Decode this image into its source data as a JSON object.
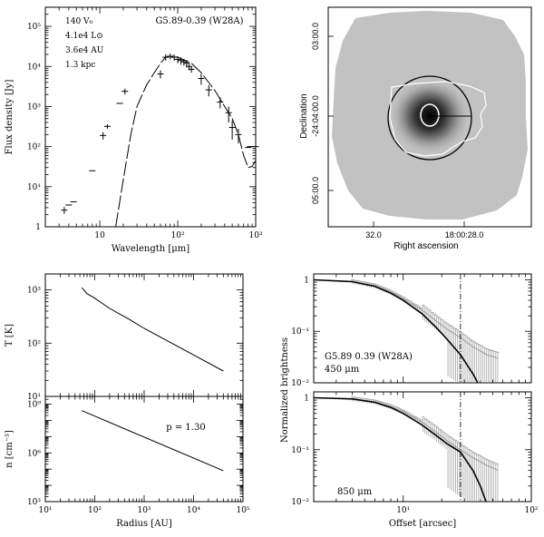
{
  "chart_data": [
    {
      "type": "scatter",
      "name": "sed",
      "title": "G5.89-0.39 (W28A)",
      "xlabel": "Wavelength [μm]",
      "ylabel": "Flux density [Jy]",
      "xscale": "log",
      "yscale": "log",
      "xlim": [
        2,
        1000
      ],
      "ylim": [
        1,
        300000
      ],
      "xticks": [
        {
          "v": 10,
          "t": "10"
        },
        {
          "v": 100,
          "t": "10²"
        },
        {
          "v": 1000,
          "t": "10³"
        }
      ],
      "yticks": [
        {
          "v": 1,
          "t": "1"
        },
        {
          "v": 10,
          "t": "10¹"
        },
        {
          "v": 100,
          "t": "10²"
        },
        {
          "v": 1000,
          "t": "10³"
        },
        {
          "v": 10000,
          "t": "10⁴"
        },
        {
          "v": 100000,
          "t": "10⁵"
        }
      ],
      "params": [
        "140 V₀",
        "4.1e4 L⊙",
        "3.6e4 AU",
        "1.3 kpc"
      ],
      "points": [
        [
          3.5,
          2.6,
          0.5
        ],
        [
          4.0,
          3.5,
          0
        ],
        [
          4.6,
          4.2,
          0
        ],
        [
          8.0,
          25,
          0
        ],
        [
          11,
          190,
          40
        ],
        [
          12.5,
          320,
          40
        ],
        [
          18,
          1200,
          0
        ],
        [
          21,
          2400,
          400
        ],
        [
          60,
          6500,
          1500
        ],
        [
          70,
          17000,
          3000
        ],
        [
          80,
          18000,
          3000
        ],
        [
          90,
          17000,
          3000
        ],
        [
          100,
          15000,
          3000
        ],
        [
          110,
          14000,
          3000
        ],
        [
          120,
          13000,
          2500
        ],
        [
          130,
          12000,
          2500
        ],
        [
          140,
          10000,
          2000
        ],
        [
          150,
          8500,
          1500
        ],
        [
          200,
          5000,
          1500
        ],
        [
          250,
          2600,
          800
        ],
        [
          350,
          1300,
          400
        ],
        [
          450,
          700,
          300
        ],
        [
          500,
          300,
          150
        ],
        [
          600,
          200,
          80
        ],
        [
          800,
          95,
          0
        ],
        [
          850,
          100,
          0
        ],
        [
          1000,
          100,
          0
        ]
      ],
      "model": [
        [
          16,
          1
        ],
        [
          20,
          15
        ],
        [
          25,
          200
        ],
        [
          30,
          1000
        ],
        [
          40,
          3500
        ],
        [
          50,
          7000
        ],
        [
          60,
          12000
        ],
        [
          70,
          17000
        ],
        [
          80,
          18000
        ],
        [
          100,
          17000
        ],
        [
          150,
          12000
        ],
        [
          200,
          7000
        ],
        [
          300,
          2500
        ],
        [
          400,
          1000
        ],
        [
          500,
          500
        ],
        [
          600,
          200
        ],
        [
          700,
          60
        ],
        [
          800,
          30
        ],
        [
          900,
          32
        ],
        [
          1000,
          45
        ]
      ]
    },
    {
      "type": "heatmap",
      "name": "map",
      "xlabel": "Right ascension",
      "ylabel": "Declination",
      "xticks": [
        "32.0",
        "18:00:28.0"
      ],
      "yticks": [
        "03:00.0",
        "-24:04:00.0",
        "05:00.0"
      ]
    },
    {
      "type": "line",
      "name": "temperature",
      "ylabel": "T [K]",
      "xscale": "log",
      "yscale": "log",
      "xlim": [
        10,
        100000
      ],
      "ylim": [
        10,
        2000
      ],
      "yticks": [
        {
          "v": 10,
          "t": "10¹"
        },
        {
          "v": 100,
          "t": "10²"
        },
        {
          "v": 1000,
          "t": "10³"
        }
      ],
      "x": [
        55,
        70,
        100,
        200,
        500,
        1000,
        3000,
        10000,
        40000
      ],
      "y": [
        1100,
        850,
        700,
        450,
        280,
        190,
        110,
        60,
        30
      ]
    },
    {
      "type": "line",
      "name": "density",
      "xlabel": "Radius [AU]",
      "ylabel": "n [cm⁻³]",
      "annotation": "p = 1.30",
      "xscale": "log",
      "yscale": "log",
      "xlim": [
        10,
        100000
      ],
      "ylim": [
        1000,
        3000000000
      ],
      "xticks": [
        {
          "v": 10,
          "t": "10¹"
        },
        {
          "v": 100,
          "t": "10²"
        },
        {
          "v": 1000,
          "t": "10³"
        },
        {
          "v": 10000,
          "t": "10⁴"
        },
        {
          "v": 100000,
          "t": "10⁵"
        }
      ],
      "yticks": [
        {
          "v": 1000,
          "t": "10³"
        },
        {
          "v": 1000000,
          "t": "10⁶"
        },
        {
          "v": 1000000000,
          "t": "10⁹"
        }
      ],
      "x": [
        55,
        40000
      ],
      "y": [
        400000000,
        80000
      ]
    },
    {
      "type": "line",
      "name": "profile-450",
      "ylabel": "Normalized brightness",
      "label": "G5.89 0.39 (W28A)",
      "wavelength": "450 μm",
      "xscale": "log",
      "yscale": "log",
      "xlim": [
        2,
        100
      ],
      "ylim": [
        0.01,
        1.3
      ],
      "yticks": [
        {
          "v": 0.01,
          "t": "10⁻²"
        },
        {
          "v": 0.1,
          "t": "10⁻¹"
        },
        {
          "v": 1,
          "t": "1"
        }
      ],
      "vline": 28,
      "model": [
        [
          2,
          1
        ],
        [
          4,
          0.92
        ],
        [
          6,
          0.75
        ],
        [
          8,
          0.55
        ],
        [
          10,
          0.4
        ],
        [
          14,
          0.22
        ],
        [
          18,
          0.12
        ],
        [
          22,
          0.07
        ],
        [
          28,
          0.035
        ],
        [
          35,
          0.015
        ],
        [
          40,
          0.008
        ]
      ],
      "observed": [
        [
          2,
          1
        ],
        [
          4,
          0.93
        ],
        [
          6,
          0.77
        ],
        [
          8,
          0.58
        ],
        [
          10,
          0.43
        ],
        [
          14,
          0.26
        ],
        [
          18,
          0.16
        ],
        [
          22,
          0.11
        ],
        [
          28,
          0.075
        ],
        [
          35,
          0.05
        ],
        [
          45,
          0.035
        ],
        [
          55,
          0.03
        ]
      ]
    },
    {
      "type": "line",
      "name": "profile-850",
      "xlabel": "Offset [arcsec]",
      "wavelength": "850 μm",
      "xscale": "log",
      "yscale": "log",
      "xlim": [
        2,
        100
      ],
      "ylim": [
        0.01,
        1.3
      ],
      "xticks": [
        {
          "v": 10,
          "t": "10¹"
        },
        {
          "v": 100,
          "t": "10²"
        }
      ],
      "yticks": [
        {
          "v": 0.01,
          "t": "10⁻²"
        },
        {
          "v": 0.1,
          "t": "10⁻¹"
        },
        {
          "v": 1,
          "t": "1"
        }
      ],
      "vline": 28,
      "model": [
        [
          2,
          1
        ],
        [
          4,
          0.95
        ],
        [
          6,
          0.82
        ],
        [
          8,
          0.65
        ],
        [
          10,
          0.5
        ],
        [
          14,
          0.3
        ],
        [
          18,
          0.19
        ],
        [
          22,
          0.13
        ],
        [
          28,
          0.09
        ],
        [
          35,
          0.04
        ],
        [
          40,
          0.02
        ],
        [
          45,
          0.009
        ]
      ],
      "observed": [
        [
          2,
          1
        ],
        [
          4,
          0.96
        ],
        [
          6,
          0.84
        ],
        [
          8,
          0.68
        ],
        [
          10,
          0.54
        ],
        [
          14,
          0.34
        ],
        [
          18,
          0.22
        ],
        [
          22,
          0.15
        ],
        [
          28,
          0.1
        ],
        [
          35,
          0.07
        ],
        [
          45,
          0.05
        ],
        [
          55,
          0.04
        ]
      ]
    }
  ]
}
